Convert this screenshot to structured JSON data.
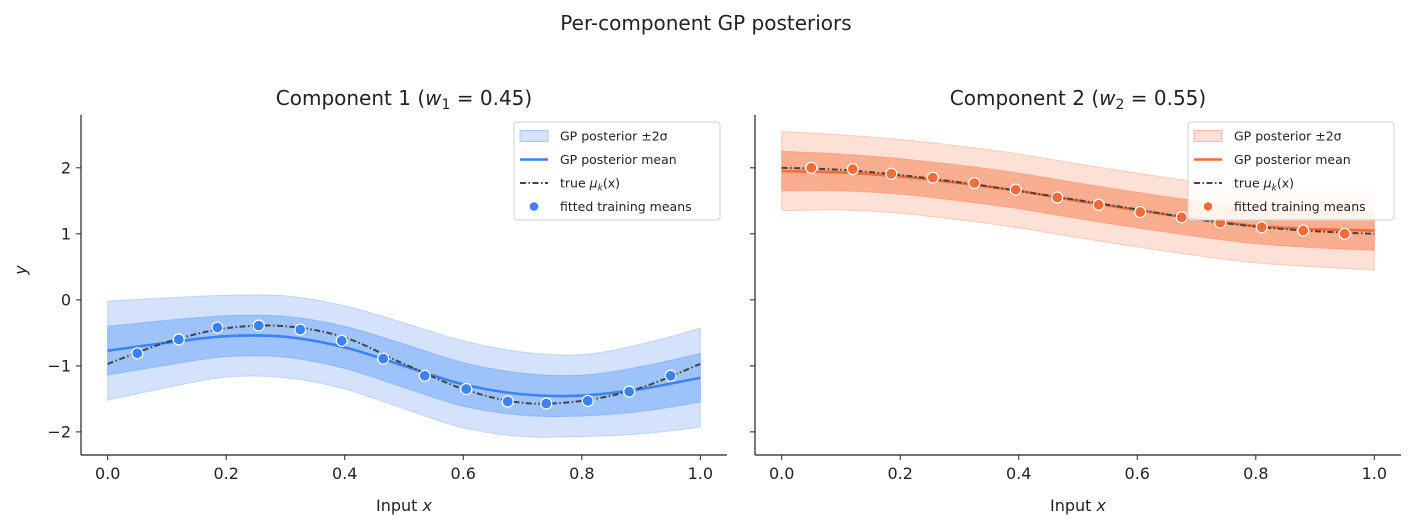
{
  "figure": {
    "suptitle": "Per-component GP posteriors"
  },
  "colors": {
    "comp1": "#3b82f6",
    "comp1_band_outer": "#d4e3fb",
    "comp1_band_inner": "#9ec3fa",
    "comp2": "#f26b3a",
    "comp2_band_outer": "#fde0d6",
    "comp2_band_inner": "#fbad90",
    "true_curve": "#444444"
  },
  "chart_data": [
    {
      "type": "line",
      "title": "Component 1  (w₁ = 0.45)",
      "title_prefix": "Component 1  (",
      "title_var": "w",
      "title_sub": "1",
      "title_suffix": " = 0.45)",
      "xlabel_prefix": "Input ",
      "xlabel_var": "x",
      "ylabel": "y",
      "xlim": [
        -0.045,
        1.045
      ],
      "ylim": [
        -2.35,
        2.8
      ],
      "xticks": [
        0.0,
        0.2,
        0.4,
        0.6,
        0.8,
        1.0
      ],
      "xtick_labels": [
        "0.0",
        "0.2",
        "0.4",
        "0.6",
        "0.8",
        "1.0"
      ],
      "yticks": [
        -2,
        -1,
        0,
        1,
        2
      ],
      "ytick_labels": [
        "−2",
        "−1",
        "0",
        "1",
        "2"
      ],
      "legend_position": "top-right",
      "legend": [
        {
          "label": "GP posterior ±2σ",
          "kind": "band"
        },
        {
          "label": "GP posterior mean",
          "kind": "line"
        },
        {
          "label_prefix": "true ",
          "label_var": "μ",
          "label_sub": "k",
          "label_suffix": "(x)",
          "kind": "dashed"
        },
        {
          "label": "fitted training means",
          "kind": "marker"
        }
      ],
      "x": [
        0.0,
        0.1,
        0.2,
        0.3,
        0.4,
        0.5,
        0.6,
        0.7,
        0.8,
        0.9,
        1.0
      ],
      "mean": [
        -0.77,
        -0.65,
        -0.55,
        -0.56,
        -0.72,
        -1.0,
        -1.28,
        -1.43,
        -1.45,
        -1.35,
        -1.18
      ],
      "band_inner_halfwidth": [
        0.37,
        0.34,
        0.31,
        0.31,
        0.32,
        0.33,
        0.33,
        0.32,
        0.31,
        0.34,
        0.37
      ],
      "band_outer_halfwidth": [
        0.75,
        0.68,
        0.62,
        0.62,
        0.63,
        0.65,
        0.66,
        0.64,
        0.62,
        0.68,
        0.75
      ],
      "true_curve": [
        -0.97,
        -0.64,
        -0.43,
        -0.4,
        -0.57,
        -0.97,
        -1.35,
        -1.56,
        -1.53,
        -1.33,
        -0.97
      ],
      "training_x": [
        0.05,
        0.12,
        0.185,
        0.255,
        0.325,
        0.395,
        0.465,
        0.535,
        0.605,
        0.675,
        0.74,
        0.81,
        0.88,
        0.95
      ],
      "training_y": [
        -0.81,
        -0.6,
        -0.42,
        -0.39,
        -0.45,
        -0.62,
        -0.89,
        -1.15,
        -1.35,
        -1.54,
        -1.57,
        -1.53,
        -1.39,
        -1.15
      ]
    },
    {
      "type": "line",
      "title": "Component 2  (w₂ = 0.55)",
      "title_prefix": "Component 2  (",
      "title_var": "w",
      "title_sub": "2",
      "title_suffix": " = 0.55)",
      "xlabel_prefix": "Input ",
      "xlabel_var": "x",
      "ylabel": "",
      "xlim": [
        -0.045,
        1.045
      ],
      "ylim": [
        -2.35,
        2.8
      ],
      "xticks": [
        0.0,
        0.2,
        0.4,
        0.6,
        0.8,
        1.0
      ],
      "xtick_labels": [
        "0.0",
        "0.2",
        "0.4",
        "0.6",
        "0.8",
        "1.0"
      ],
      "yticks": [
        -2,
        -1,
        0,
        1,
        2
      ],
      "ytick_labels": [
        "",
        "",
        "",
        "",
        ""
      ],
      "legend_position": "top-right",
      "legend": [
        {
          "label": "GP posterior ±2σ",
          "kind": "band"
        },
        {
          "label": "GP posterior mean",
          "kind": "line"
        },
        {
          "label_prefix": "true ",
          "label_var": "μ",
          "label_sub": "k",
          "label_suffix": "(x)",
          "kind": "dashed"
        },
        {
          "label": "fitted training means",
          "kind": "marker"
        }
      ],
      "x": [
        0.0,
        0.1,
        0.2,
        0.3,
        0.4,
        0.5,
        0.6,
        0.7,
        0.8,
        0.9,
        1.0
      ],
      "mean": [
        1.95,
        1.93,
        1.87,
        1.77,
        1.65,
        1.5,
        1.36,
        1.23,
        1.12,
        1.07,
        1.05
      ],
      "band_inner_halfwidth": [
        0.3,
        0.28,
        0.27,
        0.27,
        0.27,
        0.27,
        0.27,
        0.27,
        0.27,
        0.28,
        0.3
      ],
      "band_outer_halfwidth": [
        0.6,
        0.57,
        0.56,
        0.56,
        0.56,
        0.56,
        0.56,
        0.56,
        0.56,
        0.57,
        0.6
      ],
      "true_curve": [
        2.0,
        1.97,
        1.89,
        1.78,
        1.65,
        1.51,
        1.37,
        1.22,
        1.11,
        1.04,
        1.0
      ],
      "training_x": [
        0.05,
        0.12,
        0.185,
        0.255,
        0.325,
        0.395,
        0.465,
        0.535,
        0.605,
        0.675,
        0.74,
        0.81,
        0.88,
        0.95
      ],
      "training_y": [
        2.0,
        1.98,
        1.91,
        1.85,
        1.77,
        1.67,
        1.55,
        1.44,
        1.33,
        1.25,
        1.17,
        1.1,
        1.05,
        1.0
      ]
    }
  ]
}
